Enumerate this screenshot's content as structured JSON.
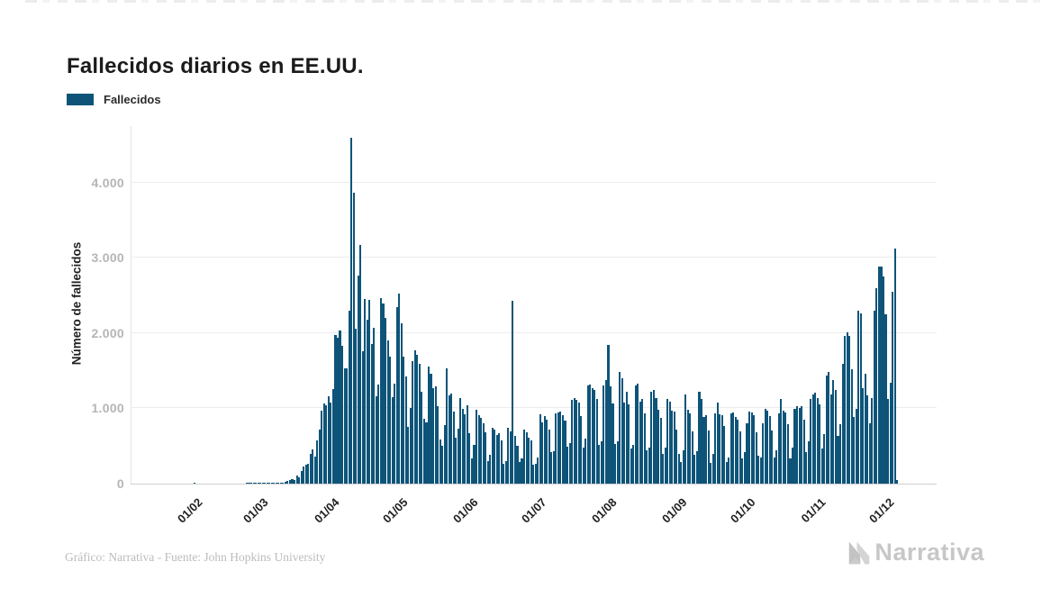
{
  "page": {
    "title": "Fallecidos diarios en EE.UU."
  },
  "legend": {
    "label": "Fallecidos",
    "swatch_color": "#0e5479"
  },
  "footer": {
    "credit": "Gráfico: Narrativa - Fuente: John Hopkins University",
    "logo_text": "Narrativa"
  },
  "chart_data": {
    "type": "bar",
    "title": "Fallecidos diarios en EE.UU.",
    "ylabel": "Número de fallecidos",
    "legend": "Fallecidos",
    "legend_position": "top-left",
    "grid": "horizontal",
    "bar_color": "#0e5479",
    "ylim": [
      0,
      4750
    ],
    "ytick_values": [
      0,
      1000,
      2000,
      3000,
      4000
    ],
    "ytick_labels": [
      "0",
      "1.000",
      "2.000",
      "3.000",
      "4.000"
    ],
    "xticks": [
      {
        "label": "01/02",
        "day_index": 10
      },
      {
        "label": "01/03",
        "day_index": 39
      },
      {
        "label": "01/04",
        "day_index": 70
      },
      {
        "label": "01/05",
        "day_index": 100
      },
      {
        "label": "01/06",
        "day_index": 131
      },
      {
        "label": "01/07",
        "day_index": 161
      },
      {
        "label": "01/08",
        "day_index": 192
      },
      {
        "label": "01/09",
        "day_index": 223
      },
      {
        "label": "01/10",
        "day_index": 253
      },
      {
        "label": "01/11",
        "day_index": 284
      },
      {
        "label": "01/12",
        "day_index": 314
      }
    ],
    "series": [
      {
        "name": "Fallecidos",
        "values": [
          0,
          0,
          0,
          0,
          0,
          0,
          0,
          0,
          0,
          0,
          0,
          0,
          0,
          0,
          0,
          1,
          0,
          0,
          0,
          0,
          0,
          0,
          0,
          0,
          0,
          0,
          0,
          0,
          0,
          0,
          0,
          0,
          0,
          0,
          0,
          0,
          0,
          0,
          1,
          1,
          1,
          2,
          3,
          4,
          2,
          3,
          4,
          4,
          6,
          4,
          7,
          11,
          10,
          11,
          18,
          23,
          41,
          49,
          57,
          49,
          111,
          80,
          164,
          225,
          247,
          268,
          400,
          453,
          363,
          573,
          716,
          968,
          1064,
          1036,
          1165,
          1078,
          1255,
          1973,
          1943,
          2035,
          1830,
          1528,
          1535,
          2299,
          4591,
          3868,
          2062,
          2760,
          3176,
          1758,
          2448,
          2172,
          2438,
          1856,
          2065,
          1157,
          1312,
          2470,
          2390,
          2201,
          1897,
          1691,
          1154,
          1324,
          2350,
          2528,
          2129,
          1687,
          1422,
          750,
          1008,
          1630,
          1772,
          1715,
          1595,
          1218,
          865,
          808,
          1552,
          1461,
          1263,
          1293,
          1035,
          592,
          505,
          774,
          1535,
          1175,
          1193,
          960,
          605,
          730,
          1134,
          995,
          919,
          1036,
          670,
          330,
          510,
          979,
          905,
          868,
          802,
          683,
          300,
          389,
          740,
          720,
          650,
          670,
          580,
          267,
          294,
          740,
          700,
          2425,
          640,
          500,
          285,
          335,
          724,
          680,
          613,
          575,
          254,
          263,
          351,
          920,
          810,
          900,
          850,
          720,
          420,
          430,
          935,
          940,
          963,
          908,
          835,
          490,
          540,
          1110,
          1135,
          1110,
          1072,
          900,
          480,
          600,
          1300,
          1320,
          1268,
          1250,
          1130,
          515,
          560,
          1302,
          1380,
          1844,
          1290,
          1064,
          530,
          560,
          1485,
          1400,
          1076,
          1218,
          1050,
          470,
          510,
          1300,
          1330,
          1090,
          1120,
          930,
          440,
          480,
          1222,
          1250,
          1132,
          980,
          870,
          400,
          480,
          1120,
          1088,
          975,
          960,
          720,
          390,
          290,
          440,
          1180,
          980,
          930,
          700,
          380,
          430,
          1220,
          1120,
          880,
          910,
          710,
          270,
          400,
          930,
          1080,
          920,
          910,
          760,
          290,
          350,
          930,
          940,
          890,
          850,
          690,
          340,
          420,
          800,
          960,
          940,
          910,
          680,
          370,
          350,
          800,
          990,
          970,
          900,
          710,
          350,
          440,
          930,
          1130,
          970,
          945,
          790,
          340,
          480,
          990,
          1030,
          1000,
          1035,
          850,
          420,
          560,
          1130,
          1187,
          1210,
          1140,
          1050,
          470,
          660,
          1440,
          1480,
          1180,
          1380,
          1250,
          640,
          790,
          1595,
          1960,
          2015,
          1960,
          1520,
          880,
          990,
          2300,
          2260,
          1270,
          1460,
          1175,
          800,
          1140,
          2300,
          2597,
          2885,
          2879,
          2750,
          2254,
          1128,
          1345,
          2546,
          3124,
          48
        ]
      }
    ]
  }
}
